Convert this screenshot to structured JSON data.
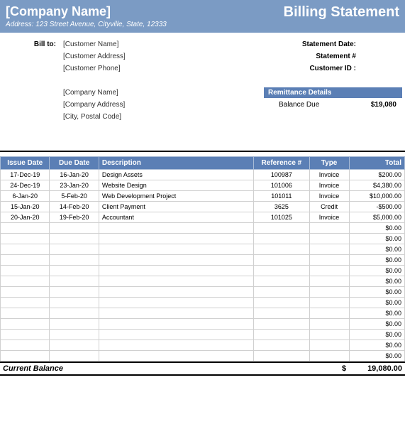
{
  "header": {
    "company_name": "[Company Name]",
    "address_label": "Address:",
    "address": "123 Street Avenue, Cityville, State, 12333",
    "title": "Billing Statement"
  },
  "bill_to": {
    "label": "Bill to:",
    "customer_name": "[Customer Name]",
    "customer_address": "[Customer Address]",
    "customer_phone": "[Customer Phone]"
  },
  "statement": {
    "date_label": "Statement Date:",
    "number_label": "Statement #",
    "customer_id_label": "Customer ID :"
  },
  "from": {
    "company_name": "[Company Name]",
    "company_address": "[Company Address]",
    "city_postal": "[City, Postal Code]"
  },
  "remittance": {
    "title": "Remittance Details",
    "balance_due_label": "Balance Due",
    "balance_due": "$19,080"
  },
  "ledger": {
    "columns": [
      "Issue Date",
      "Due Date",
      "Description",
      "Reference #",
      "Type",
      "Total"
    ],
    "rows": [
      {
        "issue": "17-Dec-19",
        "due": "16-Jan-20",
        "desc": "Design Assets",
        "ref": "100987",
        "type": "Invoice",
        "total": "$200.00"
      },
      {
        "issue": "24-Dec-19",
        "due": "23-Jan-20",
        "desc": "Website Design",
        "ref": "101006",
        "type": "Invoice",
        "total": "$4,380.00"
      },
      {
        "issue": "6-Jan-20",
        "due": "5-Feb-20",
        "desc": "Web Development Project",
        "ref": "101011",
        "type": "Invoice",
        "total": "$10,000.00"
      },
      {
        "issue": "15-Jan-20",
        "due": "14-Feb-20",
        "desc": "Client Payment",
        "ref": "3625",
        "type": "Credit",
        "total": "-$500.00"
      },
      {
        "issue": "20-Jan-20",
        "due": "19-Feb-20",
        "desc": "Accountant",
        "ref": "101025",
        "type": "Invoice",
        "total": "$5,000.00"
      }
    ],
    "empty_rows": 13,
    "empty_total": "$0.00"
  },
  "balance": {
    "label": "Current Balance",
    "currency": "$",
    "value": "19,080.00"
  },
  "colors": {
    "header_bg": "#7b9bc4",
    "th_bg": "#5b7fb5",
    "cell_border": "#d0d0d0"
  }
}
